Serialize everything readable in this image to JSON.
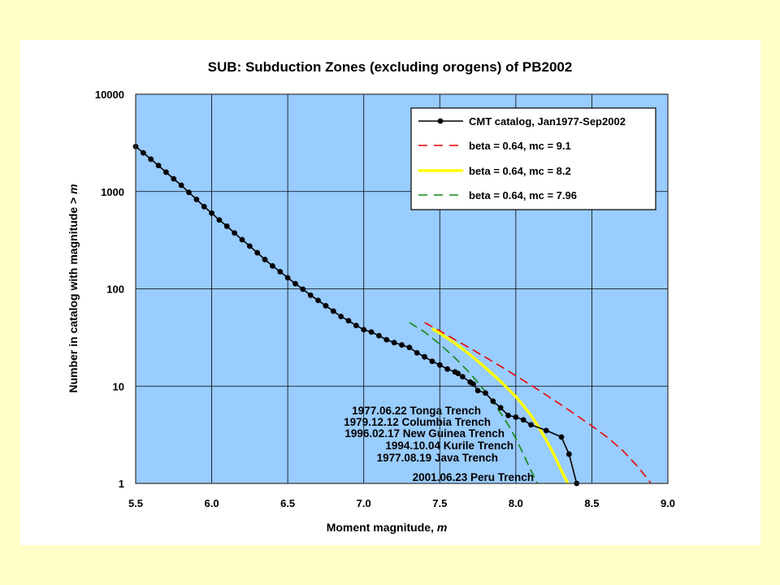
{
  "colors": {
    "page_background": "#ffffc8",
    "panel_background": "#ffffff",
    "plot_background": "#99ccff",
    "catalog": "#000000",
    "fit_91": "#ee0000",
    "fit_82": "#ffff00",
    "fit_796": "#118811"
  },
  "chart_data": {
    "type": "line",
    "title": "SUB: Subduction Zones (excluding orogens) of PB2002",
    "xlabel": "Moment magnitude, ",
    "xlabel_italic": "m",
    "ylabel": "Number in catalog with magnitude  >  ",
    "ylabel_italic": "m",
    "xlim": [
      5.5,
      9.0
    ],
    "ylim": [
      1,
      10000
    ],
    "yscale": "log",
    "grid": true,
    "legend_position": "top-right",
    "x_ticks": [
      "5.5",
      "6.0",
      "6.5",
      "7.0",
      "7.5",
      "8.0",
      "8.5",
      "9.0"
    ],
    "y_ticks": [
      "1",
      "10",
      "100",
      "1000",
      "10000"
    ],
    "series": [
      {
        "name": "CMT catalog, Jan1977-Sep2002",
        "style": "line-markers",
        "color": "#000000",
        "x": [
          5.5,
          5.55,
          5.6,
          5.65,
          5.7,
          5.75,
          5.8,
          5.85,
          5.9,
          5.95,
          6.0,
          6.05,
          6.1,
          6.15,
          6.2,
          6.25,
          6.3,
          6.35,
          6.4,
          6.45,
          6.5,
          6.55,
          6.6,
          6.65,
          6.7,
          6.75,
          6.8,
          6.85,
          6.9,
          6.95,
          7.0,
          7.05,
          7.1,
          7.15,
          7.2,
          7.25,
          7.3,
          7.35,
          7.4,
          7.45,
          7.5,
          7.55,
          7.6,
          7.62,
          7.65,
          7.7,
          7.72,
          7.75,
          7.8,
          7.85,
          7.9,
          7.95,
          8.0,
          8.05,
          8.1,
          8.2,
          8.3,
          8.35,
          8.4
        ],
        "y": [
          2900,
          2500,
          2150,
          1850,
          1580,
          1350,
          1160,
          980,
          830,
          700,
          600,
          510,
          440,
          375,
          320,
          275,
          235,
          200,
          172,
          150,
          130,
          113,
          99,
          86,
          76,
          67,
          59,
          52,
          47,
          42,
          38,
          36,
          33,
          30,
          28,
          26.5,
          25,
          22,
          20,
          18,
          16.5,
          15,
          14,
          13.5,
          12.5,
          11,
          10.5,
          9,
          8.5,
          7,
          6,
          5,
          4.8,
          4.5,
          4,
          3.5,
          3,
          2,
          1
        ]
      },
      {
        "name": "beta = 0.64, mc = 9.1",
        "style": "dashed",
        "color": "#ee0000",
        "x": [
          7.4,
          7.5,
          7.6,
          7.7,
          7.8,
          7.9,
          8.0,
          8.1,
          8.2,
          8.3,
          8.4,
          8.5,
          8.6,
          8.7,
          8.8,
          8.85,
          8.9
        ],
        "y": [
          45,
          37,
          30,
          24.5,
          19.8,
          16,
          12.8,
          10.2,
          8.1,
          6.4,
          5.0,
          3.9,
          3.0,
          2.2,
          1.5,
          1.2,
          0.95
        ]
      },
      {
        "name": "beta = 0.64, mc = 8.2",
        "style": "solid",
        "color": "#ffff00",
        "x": [
          7.45,
          7.5,
          7.6,
          7.7,
          7.8,
          7.9,
          8.0,
          8.05,
          8.1,
          8.15,
          8.2,
          8.25,
          8.3,
          8.35
        ],
        "y": [
          39,
          35,
          27.5,
          21,
          15.5,
          11.2,
          7.8,
          6.3,
          5.0,
          3.8,
          2.8,
          2.0,
          1.35,
          0.95
        ]
      },
      {
        "name": "beta = 0.64, mc = 7.96",
        "style": "dashed",
        "color": "#118811",
        "x": [
          7.3,
          7.4,
          7.5,
          7.6,
          7.7,
          7.8,
          7.9,
          7.95,
          8.0,
          8.05,
          8.1,
          8.15
        ],
        "y": [
          45,
          36,
          27,
          19.5,
          13.5,
          8.8,
          5.3,
          4.0,
          2.9,
          2.0,
          1.35,
          0.95
        ]
      }
    ],
    "annotations": [
      "1977.06.22 Tonga Trench",
      "1979.12.12 Columbia Trench",
      "1996.02.17 New Guinea Trench",
      "1994.10.04 Kurile Trench",
      "1977.08.19 Java Trench",
      "2001.06.23 Peru Trench"
    ]
  }
}
